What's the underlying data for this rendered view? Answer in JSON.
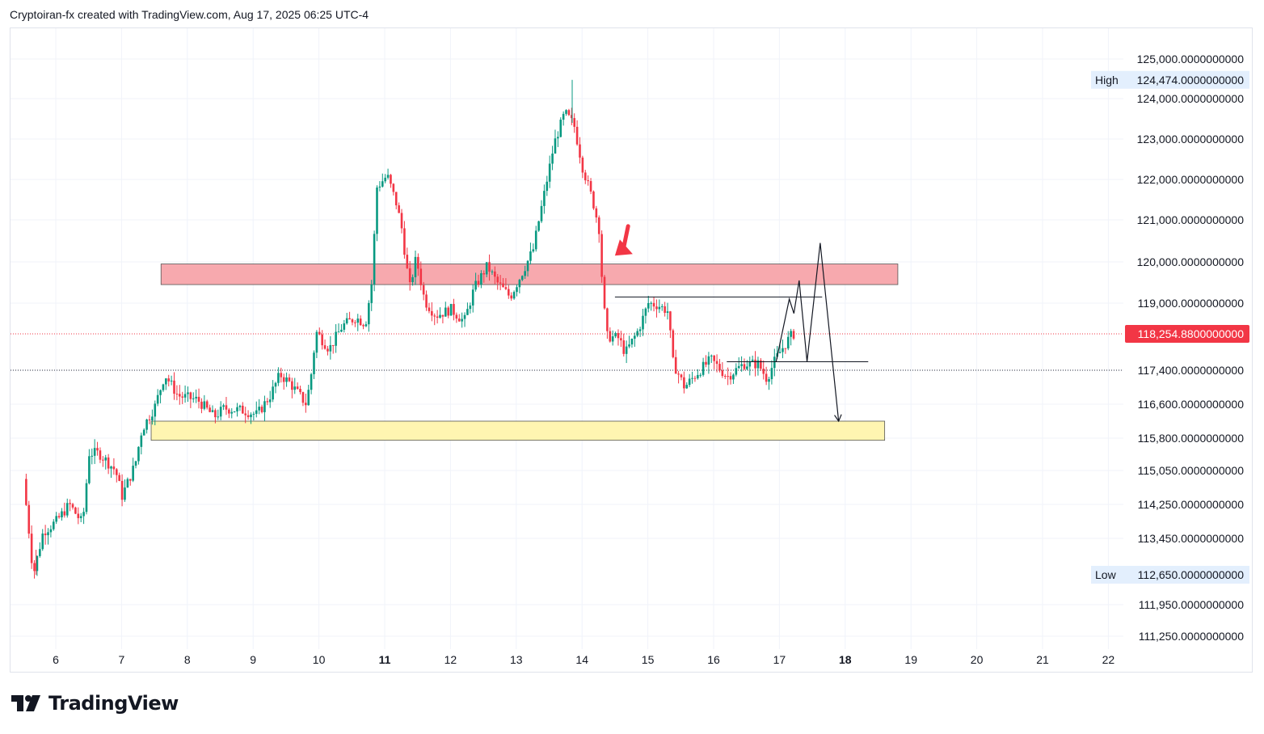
{
  "header": {
    "attribution": "Cryptoiran-fx created with TradingView.com, Aug 17, 2025 06:25 UTC-4"
  },
  "brand": {
    "name": "TradingView",
    "icon": "tradingview-logo-icon"
  },
  "colors": {
    "up": "#089981",
    "down": "#f23645",
    "resistance_zone": "#f7a9ae",
    "support_zone": "#fff5b1",
    "current_price_bg": "#f23645",
    "high_low_bg": "#e3effd",
    "arrow": "#f23645"
  },
  "chart_data": {
    "type": "candlestick",
    "x_ticks": [
      {
        "label": "6",
        "day": 6,
        "bold": false
      },
      {
        "label": "7",
        "day": 7,
        "bold": false
      },
      {
        "label": "8",
        "day": 8,
        "bold": false
      },
      {
        "label": "9",
        "day": 9,
        "bold": false
      },
      {
        "label": "10",
        "day": 10,
        "bold": false
      },
      {
        "label": "11",
        "day": 11,
        "bold": true
      },
      {
        "label": "12",
        "day": 12,
        "bold": false
      },
      {
        "label": "13",
        "day": 13,
        "bold": false
      },
      {
        "label": "14",
        "day": 14,
        "bold": false
      },
      {
        "label": "15",
        "day": 15,
        "bold": false
      },
      {
        "label": "16",
        "day": 16,
        "bold": false
      },
      {
        "label": "17",
        "day": 17,
        "bold": false
      },
      {
        "label": "18",
        "day": 18,
        "bold": true
      },
      {
        "label": "19",
        "day": 19,
        "bold": false
      },
      {
        "label": "20",
        "day": 20,
        "bold": false
      },
      {
        "label": "21",
        "day": 21,
        "bold": false
      },
      {
        "label": "22",
        "day": 22,
        "bold": false
      }
    ],
    "y_ticks": [
      {
        "label": "125,000.0000000000",
        "value": 125000
      },
      {
        "label": "124,000.0000000000",
        "value": 124000
      },
      {
        "label": "123,000.0000000000",
        "value": 123000
      },
      {
        "label": "122,000.0000000000",
        "value": 122000
      },
      {
        "label": "121,000.0000000000",
        "value": 121000
      },
      {
        "label": "120,000.0000000000",
        "value": 120000
      },
      {
        "label": "119,000.0000000000",
        "value": 119000
      },
      {
        "label": "117,400.0000000000",
        "value": 117400
      },
      {
        "label": "116,600.0000000000",
        "value": 116600
      },
      {
        "label": "115,800.0000000000",
        "value": 115800
      },
      {
        "label": "115,050.0000000000",
        "value": 115050
      },
      {
        "label": "114,250.0000000000",
        "value": 114250
      },
      {
        "label": "113,450.0000000000",
        "value": 113450
      },
      {
        "label": "111,950.0000000000",
        "value": 111950
      },
      {
        "label": "111,250.0000000000",
        "value": 111250
      }
    ],
    "high": {
      "label": "High",
      "value_label": "124,474.0000000000",
      "value": 124474
    },
    "low": {
      "label": "Low",
      "value_label": "112,650.0000000000",
      "value": 112650
    },
    "current_price": {
      "value_label": "118,254.8800000000",
      "value": 118254.88
    },
    "reference_level": 117400,
    "zones": [
      {
        "name": "resistance",
        "start_day": 7.6,
        "end_day": 18.8,
        "low": 119450,
        "high": 119950
      },
      {
        "name": "support",
        "start_day": 7.45,
        "end_day": 18.6,
        "low": 115750,
        "high": 116200
      }
    ],
    "levels": [
      {
        "start_day": 14.5,
        "end_day": 17.65,
        "value": 119150
      },
      {
        "start_day": 16.2,
        "end_day": 18.35,
        "value": 117600
      }
    ],
    "projection": [
      {
        "day": 16.95,
        "value": 117600
      },
      {
        "day": 17.15,
        "value": 119100
      },
      {
        "day": 17.22,
        "value": 118750
      },
      {
        "day": 17.3,
        "value": 119550
      },
      {
        "day": 17.42,
        "value": 117600
      },
      {
        "day": 17.62,
        "value": 120450
      },
      {
        "day": 17.9,
        "value": 116200
      }
    ],
    "pointer": {
      "from_day": 14.7,
      "from_value": 120850,
      "to_day": 14.5,
      "to_value": 120150
    },
    "path": [
      [
        5.55,
        114850
      ],
      [
        5.7,
        112650
      ],
      [
        5.85,
        113600
      ],
      [
        6.05,
        113850
      ],
      [
        6.25,
        114250
      ],
      [
        6.45,
        113800
      ],
      [
        6.55,
        115450
      ],
      [
        6.7,
        115450
      ],
      [
        6.95,
        115050
      ],
      [
        7.05,
        114450
      ],
      [
        7.25,
        115200
      ],
      [
        7.35,
        116000
      ],
      [
        7.55,
        116550
      ],
      [
        7.7,
        117300
      ],
      [
        7.9,
        116800
      ],
      [
        8.2,
        116700
      ],
      [
        8.45,
        116300
      ],
      [
        8.6,
        116500
      ],
      [
        8.9,
        116450
      ],
      [
        9.1,
        116350
      ],
      [
        9.3,
        116800
      ],
      [
        9.45,
        117300
      ],
      [
        9.6,
        117100
      ],
      [
        9.85,
        116600
      ],
      [
        9.92,
        117250
      ],
      [
        10.0,
        118300
      ],
      [
        10.2,
        117900
      ],
      [
        10.4,
        118450
      ],
      [
        10.6,
        118650
      ],
      [
        10.75,
        118500
      ],
      [
        10.85,
        119550
      ],
      [
        10.92,
        121800
      ],
      [
        11.08,
        122100
      ],
      [
        11.22,
        121400
      ],
      [
        11.3,
        120800
      ],
      [
        11.42,
        119350
      ],
      [
        11.52,
        120100
      ],
      [
        11.65,
        119050
      ],
      [
        11.82,
        118700
      ],
      [
        12.05,
        118850
      ],
      [
        12.25,
        118550
      ],
      [
        12.4,
        119350
      ],
      [
        12.6,
        119900
      ],
      [
        12.75,
        119500
      ],
      [
        12.95,
        119150
      ],
      [
        13.12,
        119700
      ],
      [
        13.3,
        120300
      ],
      [
        13.48,
        121750
      ],
      [
        13.62,
        122900
      ],
      [
        13.78,
        123650
      ],
      [
        13.92,
        123350
      ],
      [
        14.05,
        122300
      ],
      [
        14.2,
        121500
      ],
      [
        14.32,
        120650
      ],
      [
        14.35,
        119300
      ],
      [
        14.42,
        118200
      ],
      [
        14.6,
        118150
      ],
      [
        14.7,
        117800
      ],
      [
        14.9,
        118350
      ],
      [
        15.05,
        119000
      ],
      [
        15.2,
        118950
      ],
      [
        15.35,
        118800
      ],
      [
        15.42,
        117600
      ],
      [
        15.6,
        117000
      ],
      [
        15.8,
        117350
      ],
      [
        16.0,
        117650
      ],
      [
        16.25,
        117250
      ],
      [
        16.5,
        117550
      ],
      [
        16.72,
        117550
      ],
      [
        16.85,
        117200
      ],
      [
        16.98,
        117650
      ],
      [
        17.1,
        117950
      ],
      [
        17.24,
        118254.88
      ]
    ]
  }
}
